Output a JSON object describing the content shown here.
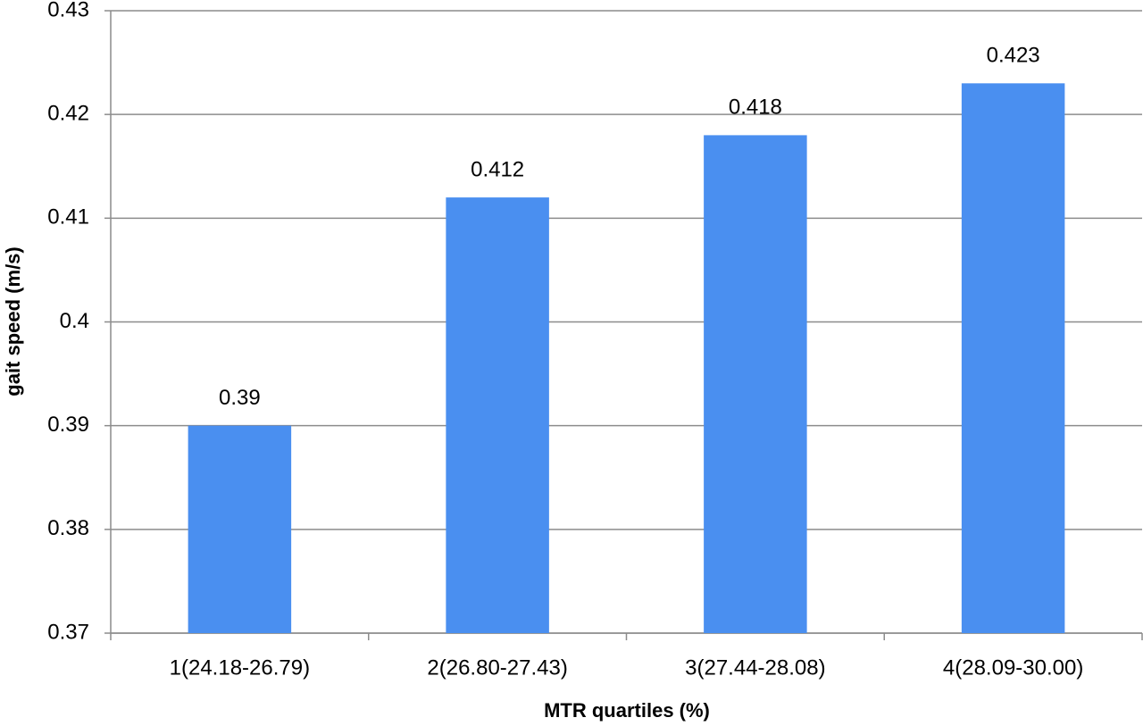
{
  "chart_data": {
    "type": "bar",
    "y_label": "gait speed (m/s)",
    "x_label": "MTR quartiles (%)",
    "categories": [
      "1(24.18-26.79)",
      "2(26.80-27.43)",
      "3(27.44-28.08)",
      "4(28.09-30.00)"
    ],
    "values": [
      0.39,
      0.412,
      0.418,
      0.423
    ],
    "color": "#4a8ff0",
    "ylim": [
      0.37,
      0.43
    ],
    "yticks": [
      0.37,
      0.38,
      0.39,
      0.4,
      0.41,
      0.42,
      0.43
    ],
    "grid": true
  }
}
